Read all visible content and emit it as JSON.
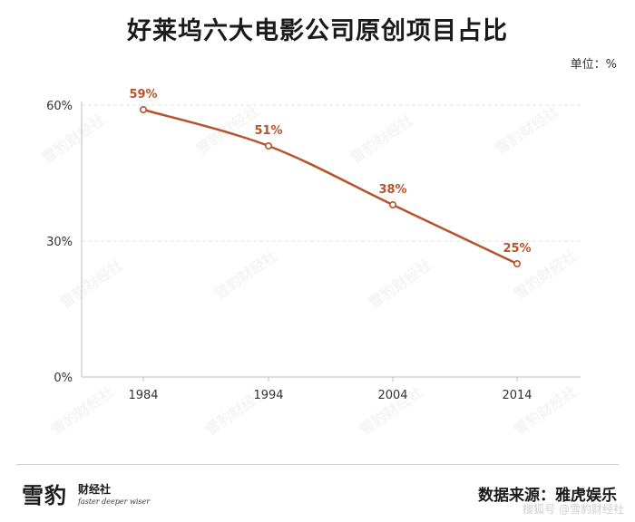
{
  "header": {
    "title": "好莱坞六大电影公司原创项目占比",
    "unit": "单位：%"
  },
  "chart_data": {
    "type": "line",
    "title": "好莱坞六大电影公司原创项目占比",
    "categories": [
      "1984",
      "1994",
      "2004",
      "2014"
    ],
    "series": [
      {
        "values": [
          59,
          51,
          38,
          25
        ],
        "labels": [
          "59%",
          "51%",
          "38%",
          "25%"
        ]
      }
    ],
    "y_ticks": [
      "0%",
      "30%",
      "60%"
    ],
    "y_tick_values": [
      0,
      30,
      60
    ],
    "ylim": [
      0,
      60
    ],
    "grid": "horizontal dashed",
    "line_color": "#b7532b",
    "label_color": "#b7532b"
  },
  "footer": {
    "logo_big": "雪豹",
    "logo_small": "财经社",
    "logo_tagline": "faster deeper wiser",
    "source": "数据来源：雅虎娱乐",
    "credit": "搜狐号 @雪豹财经社"
  },
  "watermark": "雪豹财经社"
}
